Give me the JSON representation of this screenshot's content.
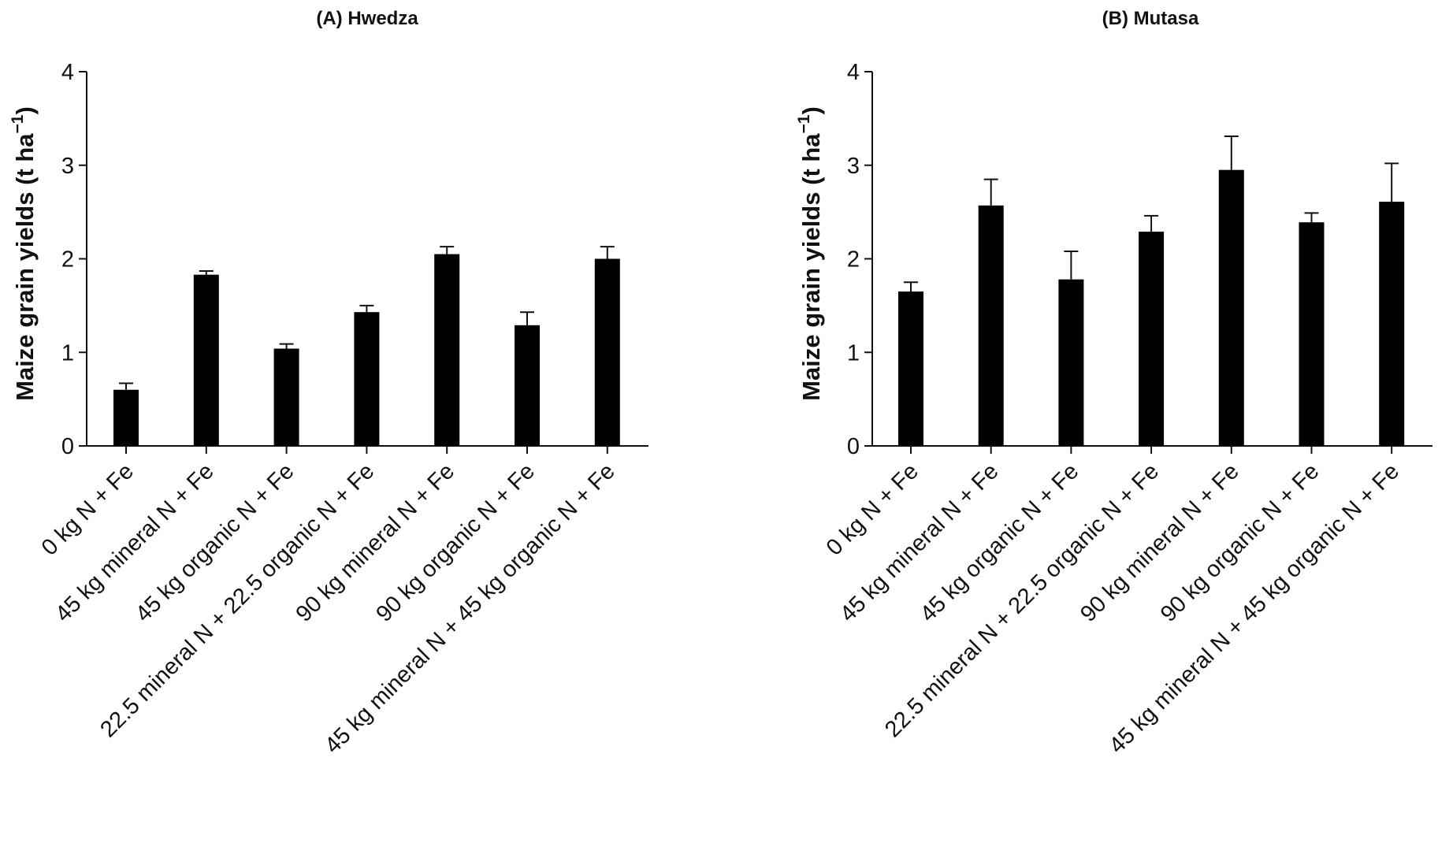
{
  "chart_data": [
    {
      "type": "bar",
      "title": "(A) Hwedza",
      "xlabel": "",
      "ylabel": "Maize grain yields (t ha",
      "ylabel_sup": "−1",
      "ylabel_close": ")",
      "ylim": [
        0,
        4
      ],
      "yticks": [
        0,
        1,
        2,
        3,
        4
      ],
      "categories": [
        "0 kg N + Fe",
        "45 kg mineral N + Fe",
        "45 kg organic N + Fe",
        "22.5 mineral N + 22.5 organic N + Fe",
        "90 kg mineral N + Fe",
        "90 kg organic N + Fe",
        "45 kg mineral N + 45 kg organic N + Fe"
      ],
      "values": [
        0.6,
        1.83,
        1.04,
        1.43,
        2.05,
        1.29,
        2.0
      ],
      "errors": [
        0.07,
        0.04,
        0.05,
        0.07,
        0.08,
        0.14,
        0.13
      ],
      "bar_color": "#000000"
    },
    {
      "type": "bar",
      "title": "(B) Mutasa",
      "xlabel": "",
      "ylabel": "Maize grain yields (t ha",
      "ylabel_sup": "−1",
      "ylabel_close": ")",
      "ylim": [
        0,
        4
      ],
      "yticks": [
        0,
        1,
        2,
        3,
        4
      ],
      "categories": [
        "0 kg N + Fe",
        "45 kg mineral N + Fe",
        "45 kg organic N + Fe",
        "22.5 mineral N + 22.5 organic N + Fe",
        "90 kg mineral N + Fe",
        "90 kg organic N + Fe",
        "45 kg mineral N + 45 kg organic N + Fe"
      ],
      "values": [
        1.65,
        2.57,
        1.78,
        2.29,
        2.95,
        2.39,
        2.61
      ],
      "errors": [
        0.1,
        0.28,
        0.3,
        0.17,
        0.36,
        0.1,
        0.41
      ],
      "bar_color": "#000000"
    }
  ]
}
